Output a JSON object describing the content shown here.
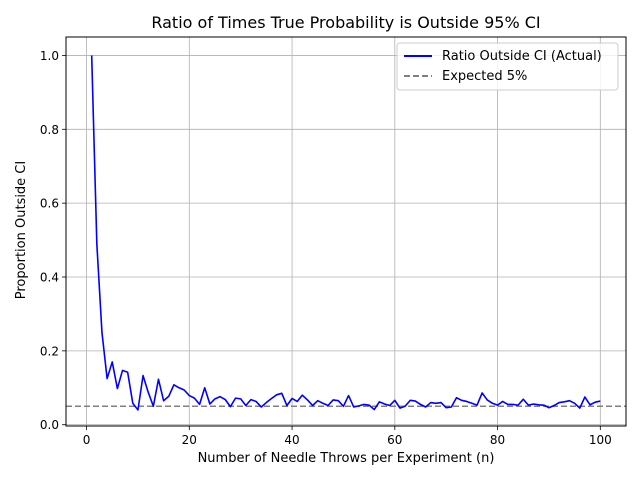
{
  "chart_data": {
    "type": "line",
    "title": "Ratio of Times True Probability is Outside 95% CI",
    "xlabel": "Number of Needle Throws per Experiment (n)",
    "ylabel": "Proportion Outside CI",
    "xlim": [
      -4,
      105
    ],
    "ylim": [
      -0.0035,
      1.05
    ],
    "xticks": [
      0,
      20,
      40,
      60,
      80,
      100
    ],
    "xtick_labels": [
      "0",
      "20",
      "40",
      "60",
      "80",
      "100"
    ],
    "yticks": [
      0.0,
      0.2,
      0.4,
      0.6,
      0.8,
      1.0
    ],
    "ytick_labels": [
      "0.0",
      "0.2",
      "0.4",
      "0.6",
      "0.8",
      "1.0"
    ],
    "grid": true,
    "legend_position": "top-right",
    "series": [
      {
        "name": "Ratio Outside CI (Actual)",
        "color": "#0000ff",
        "style": "solid",
        "x": [
          1,
          2,
          3,
          4,
          5,
          6,
          7,
          8,
          9,
          10,
          11,
          12,
          13,
          14,
          15,
          16,
          17,
          18,
          19,
          20,
          21,
          22,
          23,
          24,
          25,
          26,
          27,
          28,
          29,
          30,
          31,
          32,
          33,
          34,
          35,
          36,
          37,
          38,
          39,
          40,
          41,
          42,
          43,
          44,
          45,
          46,
          47,
          48,
          49,
          50,
          51,
          52,
          53,
          54,
          55,
          56,
          57,
          58,
          59,
          60,
          61,
          62,
          63,
          64,
          65,
          66,
          67,
          68,
          69,
          70,
          71,
          72,
          73,
          74,
          75,
          76,
          77,
          78,
          79,
          80,
          81,
          82,
          83,
          84,
          85,
          86,
          87,
          88,
          89,
          90,
          91,
          92,
          93,
          94,
          95,
          96,
          97,
          98,
          99,
          100
        ],
        "y": [
          1.0,
          0.49,
          0.25,
          0.125,
          0.17,
          0.098,
          0.147,
          0.142,
          0.058,
          0.04,
          0.133,
          0.088,
          0.05,
          0.123,
          0.065,
          0.077,
          0.108,
          0.1,
          0.094,
          0.079,
          0.072,
          0.055,
          0.1,
          0.056,
          0.07,
          0.076,
          0.068,
          0.049,
          0.072,
          0.07,
          0.052,
          0.068,
          0.063,
          0.048,
          0.06,
          0.071,
          0.081,
          0.085,
          0.052,
          0.071,
          0.063,
          0.08,
          0.067,
          0.052,
          0.065,
          0.058,
          0.052,
          0.067,
          0.065,
          0.05,
          0.079,
          0.048,
          0.051,
          0.055,
          0.053,
          0.041,
          0.062,
          0.056,
          0.052,
          0.066,
          0.045,
          0.05,
          0.066,
          0.064,
          0.055,
          0.048,
          0.06,
          0.058,
          0.06,
          0.046,
          0.048,
          0.073,
          0.066,
          0.063,
          0.058,
          0.053,
          0.086,
          0.067,
          0.058,
          0.053,
          0.063,
          0.055,
          0.055,
          0.053,
          0.069,
          0.053,
          0.056,
          0.054,
          0.053,
          0.046,
          0.052,
          0.06,
          0.062,
          0.065,
          0.058,
          0.045,
          0.075,
          0.054,
          0.061,
          0.064
        ]
      },
      {
        "name": "Expected 5%",
        "color": "#808080",
        "style": "dashed",
        "constant_y": 0.05
      }
    ]
  }
}
